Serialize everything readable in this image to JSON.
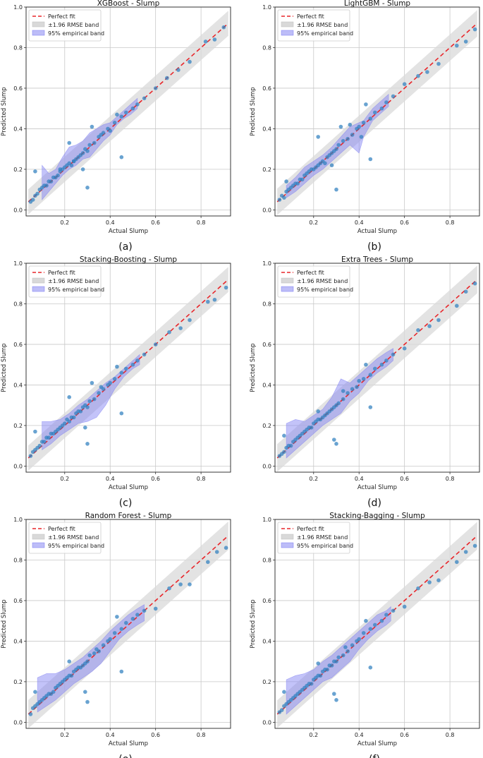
{
  "figure_captions": [
    "(a)",
    "(b)",
    "(c)",
    "(d)",
    "(e)",
    "(f)"
  ],
  "legend": {
    "perfect_fit": "Perfect fit",
    "rmse_band": "±1.96 RMSE band",
    "empirical_band": "95% empirical band"
  },
  "colors": {
    "perfect_fit": "#e8262a",
    "rmse_band": "#d9d9d9",
    "empirical_band": "#7b7bf2",
    "points": "#2f7fbf",
    "grid": "#c8c8c8"
  },
  "chart_data": [
    {
      "type": "scatter",
      "title": "XGBoost - Slump",
      "xlabel": "Actual Slump",
      "ylabel": "Predicted Slump",
      "xlim": [
        0.03,
        0.93
      ],
      "ylim": [
        -0.03,
        1.0
      ],
      "xticks": [
        "0.2",
        "0.4",
        "0.6",
        "0.8"
      ],
      "yticks": [
        "0.0",
        "0.2",
        "0.4",
        "0.6",
        "0.8",
        "1.0"
      ],
      "rmse_halfwidth": 0.062,
      "band_x": [
        0.1,
        0.13,
        0.16,
        0.19,
        0.22,
        0.25,
        0.28,
        0.31,
        0.34,
        0.37,
        0.4,
        0.43,
        0.46,
        0.49,
        0.52
      ],
      "band_low": [
        0.05,
        0.09,
        0.13,
        0.17,
        0.2,
        0.22,
        0.25,
        0.26,
        0.3,
        0.34,
        0.37,
        0.42,
        0.45,
        0.47,
        0.5
      ],
      "band_high": [
        0.22,
        0.18,
        0.2,
        0.26,
        0.31,
        0.32,
        0.34,
        0.38,
        0.4,
        0.42,
        0.43,
        0.46,
        0.49,
        0.52,
        0.55
      ],
      "points_x": [
        0.05,
        0.06,
        0.07,
        0.08,
        0.09,
        0.1,
        0.11,
        0.12,
        0.13,
        0.14,
        0.15,
        0.16,
        0.17,
        0.18,
        0.19,
        0.2,
        0.21,
        0.22,
        0.23,
        0.24,
        0.25,
        0.26,
        0.27,
        0.28,
        0.29,
        0.3,
        0.31,
        0.33,
        0.35,
        0.37,
        0.39,
        0.4,
        0.42,
        0.45,
        0.47,
        0.5,
        0.52,
        0.55,
        0.6,
        0.65,
        0.7,
        0.75,
        0.82,
        0.86,
        0.9,
        0.07,
        0.22,
        0.3,
        0.45,
        0.32,
        0.28,
        0.43,
        0.18,
        0.24,
        0.36
      ],
      "points_y": [
        0.04,
        0.05,
        0.07,
        0.08,
        0.1,
        0.11,
        0.12,
        0.12,
        0.14,
        0.14,
        0.16,
        0.16,
        0.17,
        0.19,
        0.2,
        0.21,
        0.22,
        0.23,
        0.22,
        0.24,
        0.25,
        0.26,
        0.27,
        0.28,
        0.3,
        0.29,
        0.32,
        0.33,
        0.36,
        0.38,
        0.4,
        0.39,
        0.43,
        0.46,
        0.48,
        0.5,
        0.52,
        0.55,
        0.6,
        0.65,
        0.69,
        0.73,
        0.83,
        0.84,
        0.9,
        0.19,
        0.33,
        0.11,
        0.26,
        0.41,
        0.2,
        0.47,
        0.2,
        0.24,
        0.37
      ]
    },
    {
      "type": "scatter",
      "title": "LightGBM - Slump",
      "xlabel": "Actual Slump",
      "ylabel": "Predicted Slump",
      "xlim": [
        0.03,
        0.93
      ],
      "ylim": [
        -0.03,
        1.0
      ],
      "xticks": [
        "0.2",
        "0.4",
        "0.6",
        "0.8"
      ],
      "yticks": [
        "0.0",
        "0.2",
        "0.4",
        "0.6",
        "0.8",
        "1.0"
      ],
      "rmse_halfwidth": 0.065,
      "band_x": [
        0.08,
        0.12,
        0.16,
        0.2,
        0.24,
        0.28,
        0.32,
        0.36,
        0.4,
        0.42,
        0.46,
        0.5,
        0.53
      ],
      "band_low": [
        0.06,
        0.09,
        0.13,
        0.17,
        0.2,
        0.24,
        0.28,
        0.32,
        0.28,
        0.36,
        0.44,
        0.48,
        0.51
      ],
      "band_high": [
        0.12,
        0.16,
        0.21,
        0.24,
        0.27,
        0.31,
        0.36,
        0.41,
        0.43,
        0.44,
        0.5,
        0.54,
        0.57
      ],
      "points_x": [
        0.05,
        0.06,
        0.07,
        0.08,
        0.09,
        0.1,
        0.11,
        0.12,
        0.13,
        0.14,
        0.15,
        0.16,
        0.17,
        0.18,
        0.19,
        0.2,
        0.21,
        0.22,
        0.23,
        0.24,
        0.25,
        0.26,
        0.27,
        0.28,
        0.29,
        0.3,
        0.31,
        0.33,
        0.35,
        0.37,
        0.39,
        0.4,
        0.42,
        0.45,
        0.47,
        0.5,
        0.52,
        0.55,
        0.6,
        0.66,
        0.7,
        0.75,
        0.83,
        0.87,
        0.91,
        0.08,
        0.22,
        0.3,
        0.45,
        0.32,
        0.28,
        0.43,
        0.36,
        0.41
      ],
      "points_y": [
        0.05,
        0.07,
        0.06,
        0.09,
        0.1,
        0.11,
        0.12,
        0.13,
        0.13,
        0.15,
        0.15,
        0.17,
        0.18,
        0.19,
        0.2,
        0.2,
        0.21,
        0.22,
        0.23,
        0.24,
        0.23,
        0.26,
        0.27,
        0.28,
        0.29,
        0.3,
        0.32,
        0.34,
        0.35,
        0.37,
        0.4,
        0.41,
        0.43,
        0.45,
        0.48,
        0.5,
        0.53,
        0.56,
        0.62,
        0.66,
        0.68,
        0.72,
        0.81,
        0.83,
        0.89,
        0.14,
        0.36,
        0.1,
        0.25,
        0.41,
        0.22,
        0.52,
        0.42,
        0.36
      ]
    },
    {
      "type": "scatter",
      "title": "Stacking-Boosting - Slump",
      "xlabel": "Actual Slump",
      "ylabel": "Predicted Slump",
      "xlim": [
        0.03,
        0.93
      ],
      "ylim": [
        -0.03,
        1.0
      ],
      "xticks": [
        "0.2",
        "0.4",
        "0.6",
        "0.8"
      ],
      "yticks": [
        "0.0",
        "0.2",
        "0.4",
        "0.6",
        "0.8",
        "1.0"
      ],
      "rmse_halfwidth": 0.062,
      "band_x": [
        0.1,
        0.14,
        0.18,
        0.22,
        0.26,
        0.3,
        0.34,
        0.38,
        0.42,
        0.46,
        0.5,
        0.53
      ],
      "band_low": [
        0.08,
        0.11,
        0.15,
        0.18,
        0.21,
        0.22,
        0.24,
        0.3,
        0.38,
        0.44,
        0.48,
        0.5
      ],
      "band_high": [
        0.22,
        0.22,
        0.23,
        0.26,
        0.3,
        0.33,
        0.37,
        0.41,
        0.44,
        0.48,
        0.52,
        0.55
      ],
      "points_x": [
        0.05,
        0.06,
        0.07,
        0.08,
        0.09,
        0.1,
        0.11,
        0.12,
        0.13,
        0.14,
        0.15,
        0.16,
        0.17,
        0.18,
        0.19,
        0.2,
        0.21,
        0.22,
        0.23,
        0.24,
        0.25,
        0.26,
        0.27,
        0.28,
        0.29,
        0.3,
        0.31,
        0.33,
        0.35,
        0.37,
        0.39,
        0.4,
        0.42,
        0.45,
        0.47,
        0.5,
        0.52,
        0.55,
        0.6,
        0.66,
        0.71,
        0.75,
        0.83,
        0.86,
        0.91,
        0.07,
        0.22,
        0.3,
        0.45,
        0.32,
        0.29,
        0.43,
        0.36
      ],
      "points_y": [
        0.05,
        0.07,
        0.08,
        0.09,
        0.1,
        0.12,
        0.12,
        0.14,
        0.14,
        0.16,
        0.16,
        0.17,
        0.18,
        0.19,
        0.2,
        0.21,
        0.23,
        0.22,
        0.24,
        0.24,
        0.26,
        0.27,
        0.27,
        0.29,
        0.3,
        0.29,
        0.32,
        0.33,
        0.36,
        0.38,
        0.4,
        0.41,
        0.43,
        0.46,
        0.48,
        0.5,
        0.52,
        0.55,
        0.6,
        0.66,
        0.68,
        0.72,
        0.81,
        0.82,
        0.88,
        0.17,
        0.34,
        0.11,
        0.26,
        0.41,
        0.19,
        0.49,
        0.39
      ]
    },
    {
      "type": "scatter",
      "title": "Extra Trees - Slump",
      "xlabel": "Actual Slump",
      "ylabel": "Predicted Slump",
      "xlim": [
        0.03,
        0.93
      ],
      "ylim": [
        -0.03,
        1.0
      ],
      "xticks": [
        "0.2",
        "0.4",
        "0.6",
        "0.8"
      ],
      "yticks": [
        "0.0",
        "0.2",
        "0.4",
        "0.6",
        "0.8",
        "1.0"
      ],
      "rmse_halfwidth": 0.068,
      "band_x": [
        0.08,
        0.12,
        0.16,
        0.2,
        0.24,
        0.28,
        0.32,
        0.36,
        0.4,
        0.44,
        0.48,
        0.52,
        0.55
      ],
      "band_low": [
        0.04,
        0.08,
        0.12,
        0.16,
        0.2,
        0.23,
        0.26,
        0.32,
        0.36,
        0.42,
        0.46,
        0.49,
        0.52
      ],
      "band_high": [
        0.21,
        0.23,
        0.22,
        0.25,
        0.28,
        0.34,
        0.43,
        0.41,
        0.45,
        0.49,
        0.53,
        0.56,
        0.58
      ],
      "points_x": [
        0.05,
        0.06,
        0.07,
        0.08,
        0.09,
        0.1,
        0.11,
        0.12,
        0.13,
        0.14,
        0.15,
        0.16,
        0.17,
        0.18,
        0.19,
        0.2,
        0.21,
        0.22,
        0.23,
        0.24,
        0.25,
        0.26,
        0.27,
        0.28,
        0.29,
        0.3,
        0.31,
        0.33,
        0.35,
        0.37,
        0.39,
        0.4,
        0.42,
        0.45,
        0.47,
        0.5,
        0.52,
        0.55,
        0.6,
        0.66,
        0.71,
        0.75,
        0.83,
        0.87,
        0.91,
        0.07,
        0.22,
        0.3,
        0.45,
        0.29,
        0.43,
        0.33
      ],
      "points_y": [
        0.05,
        0.06,
        0.07,
        0.09,
        0.1,
        0.1,
        0.12,
        0.13,
        0.14,
        0.15,
        0.16,
        0.17,
        0.18,
        0.19,
        0.19,
        0.21,
        0.22,
        0.23,
        0.23,
        0.24,
        0.25,
        0.26,
        0.27,
        0.28,
        0.29,
        0.3,
        0.31,
        0.33,
        0.36,
        0.38,
        0.39,
        0.42,
        0.43,
        0.45,
        0.48,
        0.5,
        0.52,
        0.55,
        0.58,
        0.67,
        0.69,
        0.72,
        0.79,
        0.86,
        0.9,
        0.15,
        0.27,
        0.11,
        0.29,
        0.13,
        0.5,
        0.37
      ]
    },
    {
      "type": "scatter",
      "title": "Random Forest - Slump",
      "xlabel": "Actual Slump",
      "ylabel": "Predicted Slump",
      "xlim": [
        0.03,
        0.93
      ],
      "ylim": [
        -0.03,
        1.0
      ],
      "xticks": [
        "0.2",
        "0.4",
        "0.6",
        "0.8"
      ],
      "yticks": [
        "0.0",
        "0.2",
        "0.4",
        "0.6",
        "0.8",
        "1.0"
      ],
      "rmse_halfwidth": 0.07,
      "band_x": [
        0.08,
        0.12,
        0.16,
        0.2,
        0.24,
        0.28,
        0.32,
        0.36,
        0.4,
        0.44,
        0.48,
        0.52,
        0.55
      ],
      "band_low": [
        0.05,
        0.08,
        0.11,
        0.15,
        0.19,
        0.22,
        0.25,
        0.29,
        0.35,
        0.41,
        0.45,
        0.48,
        0.5
      ],
      "band_high": [
        0.22,
        0.24,
        0.24,
        0.26,
        0.29,
        0.32,
        0.36,
        0.4,
        0.45,
        0.49,
        0.53,
        0.56,
        0.58
      ],
      "points_x": [
        0.05,
        0.06,
        0.07,
        0.08,
        0.09,
        0.1,
        0.11,
        0.12,
        0.13,
        0.14,
        0.15,
        0.16,
        0.17,
        0.18,
        0.19,
        0.2,
        0.21,
        0.22,
        0.23,
        0.24,
        0.25,
        0.26,
        0.27,
        0.28,
        0.29,
        0.3,
        0.31,
        0.33,
        0.35,
        0.37,
        0.39,
        0.4,
        0.42,
        0.45,
        0.47,
        0.5,
        0.52,
        0.55,
        0.6,
        0.66,
        0.71,
        0.75,
        0.83,
        0.87,
        0.91,
        0.07,
        0.22,
        0.3,
        0.45,
        0.29,
        0.43,
        0.34
      ],
      "points_y": [
        0.04,
        0.07,
        0.08,
        0.09,
        0.1,
        0.11,
        0.12,
        0.13,
        0.14,
        0.14,
        0.15,
        0.17,
        0.18,
        0.19,
        0.2,
        0.21,
        0.22,
        0.23,
        0.23,
        0.25,
        0.26,
        0.27,
        0.27,
        0.28,
        0.29,
        0.3,
        0.33,
        0.34,
        0.35,
        0.38,
        0.4,
        0.41,
        0.44,
        0.46,
        0.49,
        0.51,
        0.53,
        0.55,
        0.56,
        0.66,
        0.68,
        0.68,
        0.79,
        0.84,
        0.86,
        0.15,
        0.3,
        0.1,
        0.25,
        0.15,
        0.52,
        0.36
      ]
    },
    {
      "type": "scatter",
      "title": "Stacking-Bagging - Slump",
      "xlabel": "Actual Slump",
      "ylabel": "Predicted Slump",
      "xlim": [
        0.03,
        0.93
      ],
      "ylim": [
        -0.03,
        1.0
      ],
      "xticks": [
        "0.2",
        "0.4",
        "0.6",
        "0.8"
      ],
      "yticks": [
        "0.0",
        "0.2",
        "0.4",
        "0.6",
        "0.8",
        "1.0"
      ],
      "rmse_halfwidth": 0.068,
      "band_x": [
        0.08,
        0.12,
        0.16,
        0.2,
        0.24,
        0.28,
        0.32,
        0.36,
        0.4,
        0.44,
        0.48,
        0.52,
        0.54
      ],
      "band_low": [
        0.04,
        0.08,
        0.12,
        0.16,
        0.2,
        0.22,
        0.26,
        0.3,
        0.36,
        0.41,
        0.45,
        0.48,
        0.5
      ],
      "band_high": [
        0.21,
        0.23,
        0.24,
        0.26,
        0.3,
        0.33,
        0.37,
        0.41,
        0.45,
        0.49,
        0.53,
        0.55,
        0.57
      ],
      "points_x": [
        0.05,
        0.06,
        0.07,
        0.08,
        0.09,
        0.1,
        0.11,
        0.12,
        0.13,
        0.14,
        0.15,
        0.16,
        0.17,
        0.18,
        0.19,
        0.2,
        0.21,
        0.22,
        0.23,
        0.24,
        0.25,
        0.26,
        0.27,
        0.28,
        0.29,
        0.3,
        0.31,
        0.33,
        0.35,
        0.37,
        0.39,
        0.4,
        0.42,
        0.45,
        0.47,
        0.5,
        0.52,
        0.55,
        0.6,
        0.66,
        0.71,
        0.75,
        0.83,
        0.87,
        0.91,
        0.07,
        0.22,
        0.3,
        0.45,
        0.29,
        0.43,
        0.34
      ],
      "points_y": [
        0.05,
        0.06,
        0.08,
        0.09,
        0.1,
        0.11,
        0.12,
        0.13,
        0.14,
        0.15,
        0.16,
        0.17,
        0.18,
        0.19,
        0.19,
        0.21,
        0.22,
        0.23,
        0.23,
        0.25,
        0.26,
        0.26,
        0.28,
        0.28,
        0.3,
        0.3,
        0.32,
        0.33,
        0.35,
        0.38,
        0.4,
        0.41,
        0.44,
        0.46,
        0.48,
        0.5,
        0.53,
        0.55,
        0.57,
        0.66,
        0.69,
        0.7,
        0.79,
        0.84,
        0.87,
        0.15,
        0.29,
        0.11,
        0.27,
        0.14,
        0.5,
        0.37
      ]
    }
  ]
}
